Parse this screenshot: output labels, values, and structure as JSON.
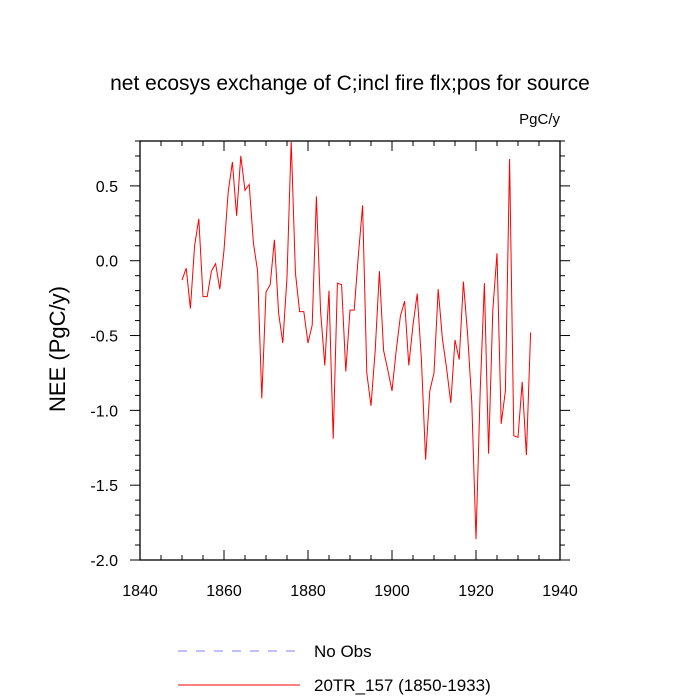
{
  "chart_data": {
    "type": "line",
    "title": "net ecosys exchange of C;incl fire flx;pos for source",
    "units": "PgC/y",
    "xlabel": "",
    "ylabel": "NEE  (PgC/y)",
    "xlim": [
      1840,
      1940
    ],
    "ylim": [
      -2.0,
      0.8
    ],
    "xticks": [
      1840,
      1860,
      1880,
      1900,
      1920,
      1940
    ],
    "xtick_labels": [
      "1840",
      "1860",
      "1880",
      "1900",
      "1920",
      "1940"
    ],
    "yticks": [
      -2.0,
      -1.5,
      -1.0,
      -0.5,
      0.0,
      0.5
    ],
    "ytick_labels": [
      "-2.0",
      "-1.5",
      "-1.0",
      "-0.5",
      "0.0",
      "0.5"
    ],
    "legend": [
      {
        "name": "No Obs",
        "color": "#8080ff",
        "style": "dashed"
      },
      {
        "name": "20TR_157 (1850-1933)",
        "color": "#ff0000",
        "style": "solid"
      }
    ],
    "series": [
      {
        "name": "20TR_157 (1850-1933)",
        "color": "#ff0000",
        "x": [
          1850,
          1851,
          1852,
          1853,
          1854,
          1855,
          1856,
          1857,
          1858,
          1859,
          1860,
          1861,
          1862,
          1863,
          1864,
          1865,
          1866,
          1867,
          1868,
          1869,
          1870,
          1871,
          1872,
          1873,
          1874,
          1875,
          1876,
          1877,
          1878,
          1879,
          1880,
          1881,
          1882,
          1883,
          1884,
          1885,
          1886,
          1887,
          1888,
          1889,
          1890,
          1891,
          1892,
          1893,
          1894,
          1895,
          1896,
          1897,
          1898,
          1899,
          1900,
          1901,
          1902,
          1903,
          1904,
          1905,
          1906,
          1907,
          1908,
          1909,
          1910,
          1911,
          1912,
          1913,
          1914,
          1915,
          1916,
          1917,
          1918,
          1919,
          1920,
          1921,
          1922,
          1923,
          1924,
          1925,
          1926,
          1927,
          1928,
          1929,
          1930,
          1931,
          1932,
          1933
        ],
        "values": [
          -0.13,
          -0.05,
          -0.32,
          0.1,
          0.28,
          -0.24,
          -0.24,
          -0.07,
          -0.02,
          -0.19,
          0.07,
          0.46,
          0.66,
          0.3,
          0.7,
          0.47,
          0.51,
          0.12,
          -0.07,
          -0.92,
          -0.21,
          -0.16,
          0.14,
          -0.35,
          -0.55,
          -0.11,
          0.8,
          -0.08,
          -0.34,
          -0.34,
          -0.55,
          -0.43,
          0.43,
          -0.34,
          -0.7,
          -0.2,
          -1.19,
          -0.15,
          -0.16,
          -0.74,
          -0.33,
          -0.33,
          0.04,
          0.37,
          -0.75,
          -0.97,
          -0.6,
          -0.07,
          -0.6,
          -0.73,
          -0.87,
          -0.6,
          -0.37,
          -0.27,
          -0.7,
          -0.43,
          -0.22,
          -0.66,
          -1.33,
          -0.87,
          -0.75,
          -0.19,
          -0.52,
          -0.72,
          -0.95,
          -0.53,
          -0.66,
          -0.14,
          -0.49,
          -0.95,
          -1.86,
          -0.87,
          -0.15,
          -1.29,
          -0.33,
          0.05,
          -1.09,
          -0.87,
          0.68,
          -1.17,
          -1.18,
          -0.81,
          -1.3,
          -0.48
        ]
      }
    ]
  }
}
